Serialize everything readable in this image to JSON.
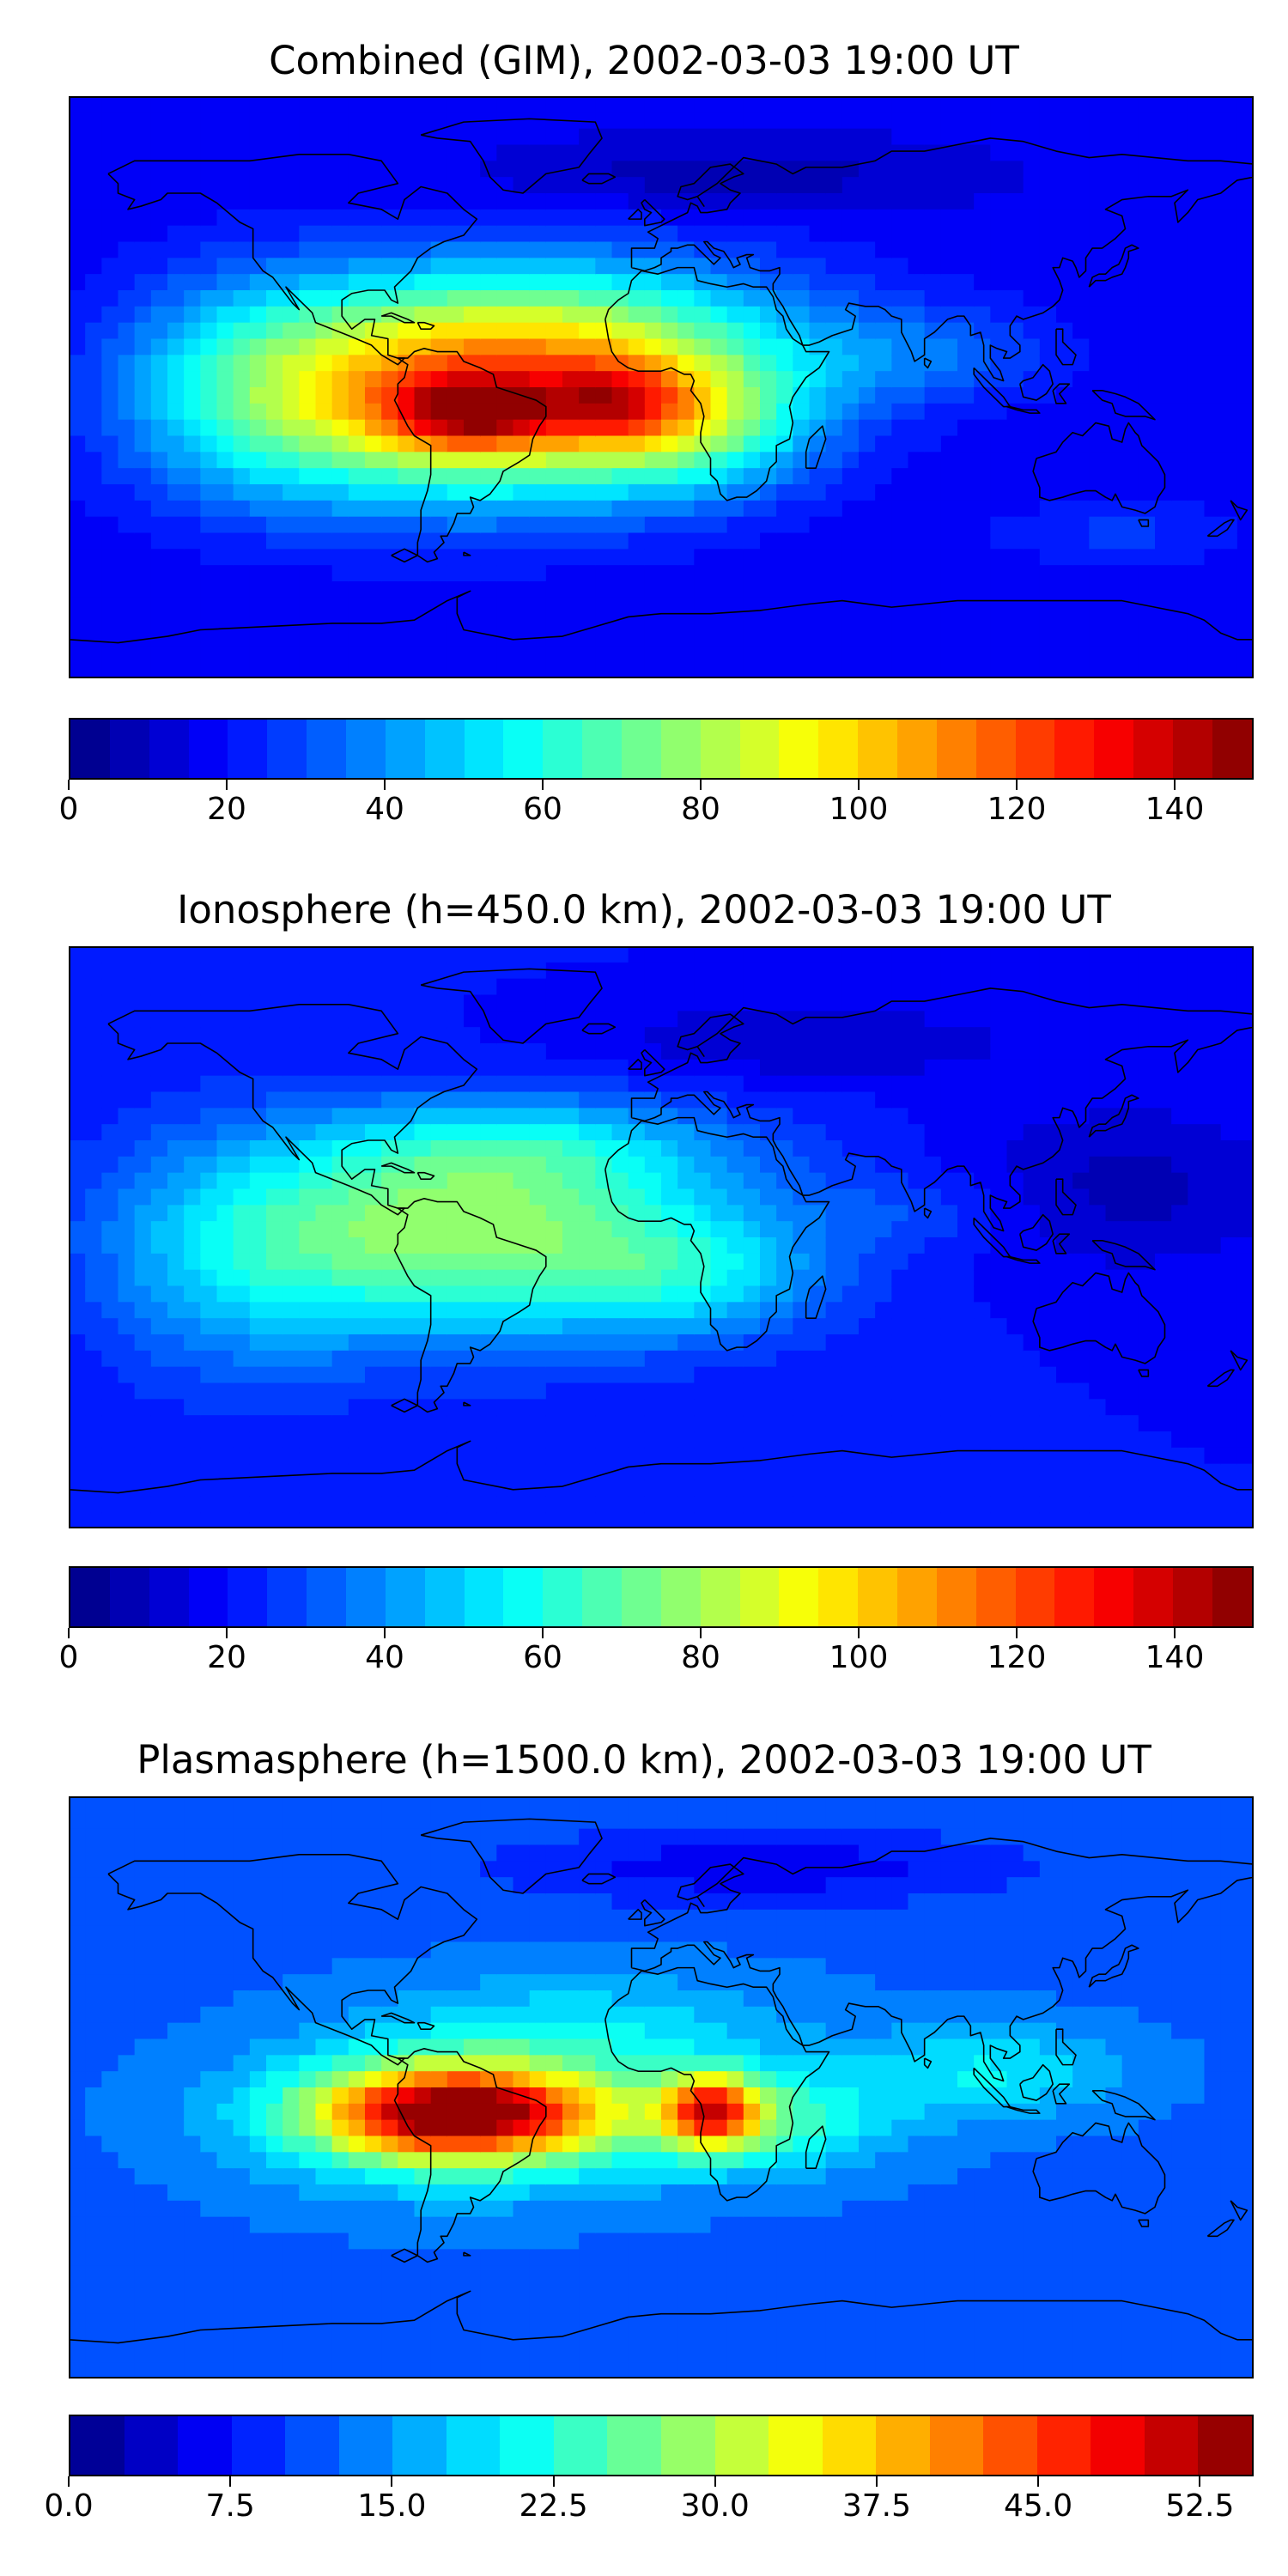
{
  "panels": [
    {
      "title": "Combined (GIM), 2002-03-03 19:00 UT",
      "field": "combined",
      "ticks": [
        "0",
        "20",
        "40",
        "60",
        "80",
        "100",
        "120",
        "140"
      ],
      "tick_values": [
        0,
        20,
        40,
        60,
        80,
        100,
        120,
        140
      ],
      "range": [
        0,
        150
      ],
      "levels": 30
    },
    {
      "title": "Ionosphere  (h=450.0 km), 2002-03-03 19:00 UT",
      "field": "ionosphere",
      "ticks": [
        "0",
        "20",
        "40",
        "60",
        "80",
        "100",
        "120",
        "140"
      ],
      "tick_values": [
        0,
        20,
        40,
        60,
        80,
        100,
        120,
        140
      ],
      "range": [
        0,
        150
      ],
      "levels": 30
    },
    {
      "title": "Plasmasphere (h=1500.0 km), 2002-03-03 19:00 UT",
      "field": "plasmasphere",
      "ticks": [
        "0.0",
        "7.5",
        "15.0",
        "22.5",
        "30.0",
        "37.5",
        "45.0",
        "52.5"
      ],
      "tick_values": [
        0,
        7.5,
        15,
        22.5,
        30,
        37.5,
        45,
        52.5
      ],
      "range": [
        0,
        55
      ],
      "levels": 22
    }
  ],
  "colormap": "jet",
  "coastline_color": "#000000"
}
